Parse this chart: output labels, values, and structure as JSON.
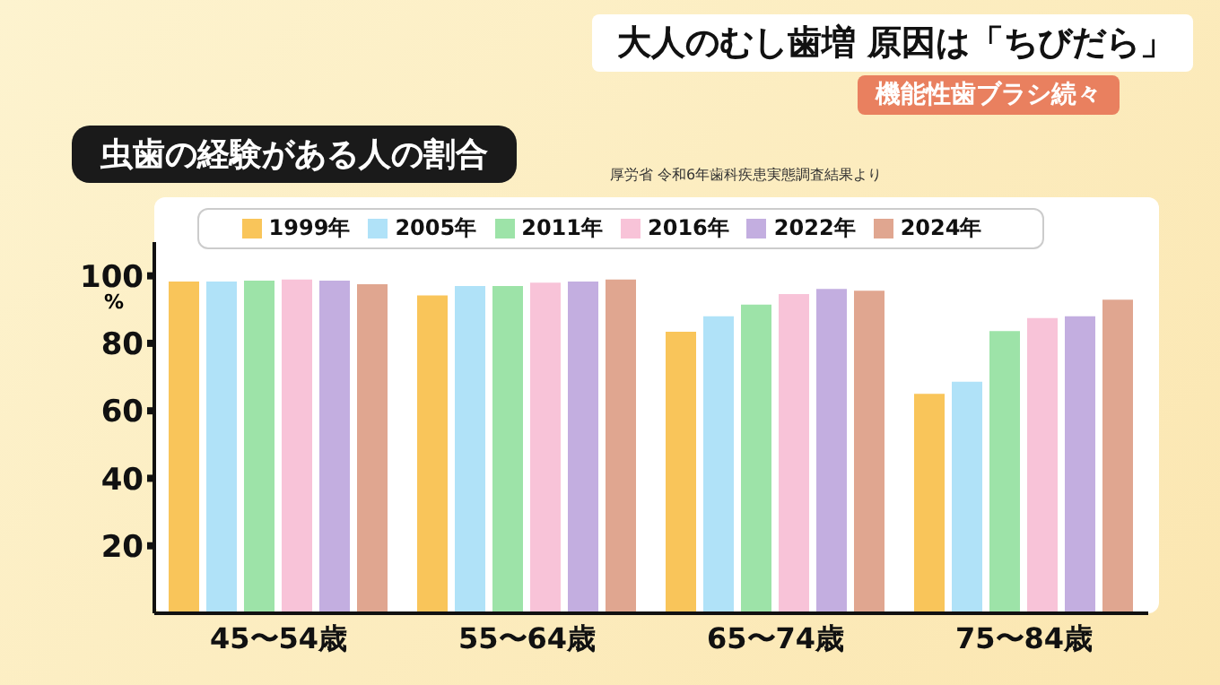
{
  "chart_data": {
    "type": "bar",
    "title": "虫歯の経験がある人の割合",
    "subtitle": "大人のむし歯増 原因は「ちびだら」",
    "annotations": [
      "機能性歯ブラシ続々",
      "厚労省 令和6年歯科疾患実態調査結果より"
    ],
    "ylabel": "%",
    "categories": [
      "45〜54歳",
      "55〜64歳",
      "65〜74歳",
      "75〜84歳"
    ],
    "series": [
      {
        "name": "1999年",
        "color": "#f9c55a",
        "values": [
          98.3,
          94.2,
          83.4,
          65.0
        ]
      },
      {
        "name": "2005年",
        "color": "#b0e2f8",
        "values": [
          98.3,
          97.0,
          88.0,
          68.6
        ]
      },
      {
        "name": "2011年",
        "color": "#9de3a8",
        "values": [
          98.6,
          97.0,
          91.5,
          83.6
        ]
      },
      {
        "name": "2016年",
        "color": "#f8c3d8",
        "values": [
          98.9,
          98.0,
          94.6,
          87.5
        ]
      },
      {
        "name": "2022年",
        "color": "#c3aee0",
        "values": [
          98.6,
          98.3,
          96.1,
          88.0
        ]
      },
      {
        "name": "2024年",
        "color": "#e0a690",
        "values": [
          97.5,
          98.9,
          95.6,
          92.9
        ]
      }
    ],
    "ylim": [
      0,
      110
    ],
    "yticks": [
      20,
      40,
      60,
      80,
      100
    ],
    "grid": false,
    "legend": "top"
  }
}
